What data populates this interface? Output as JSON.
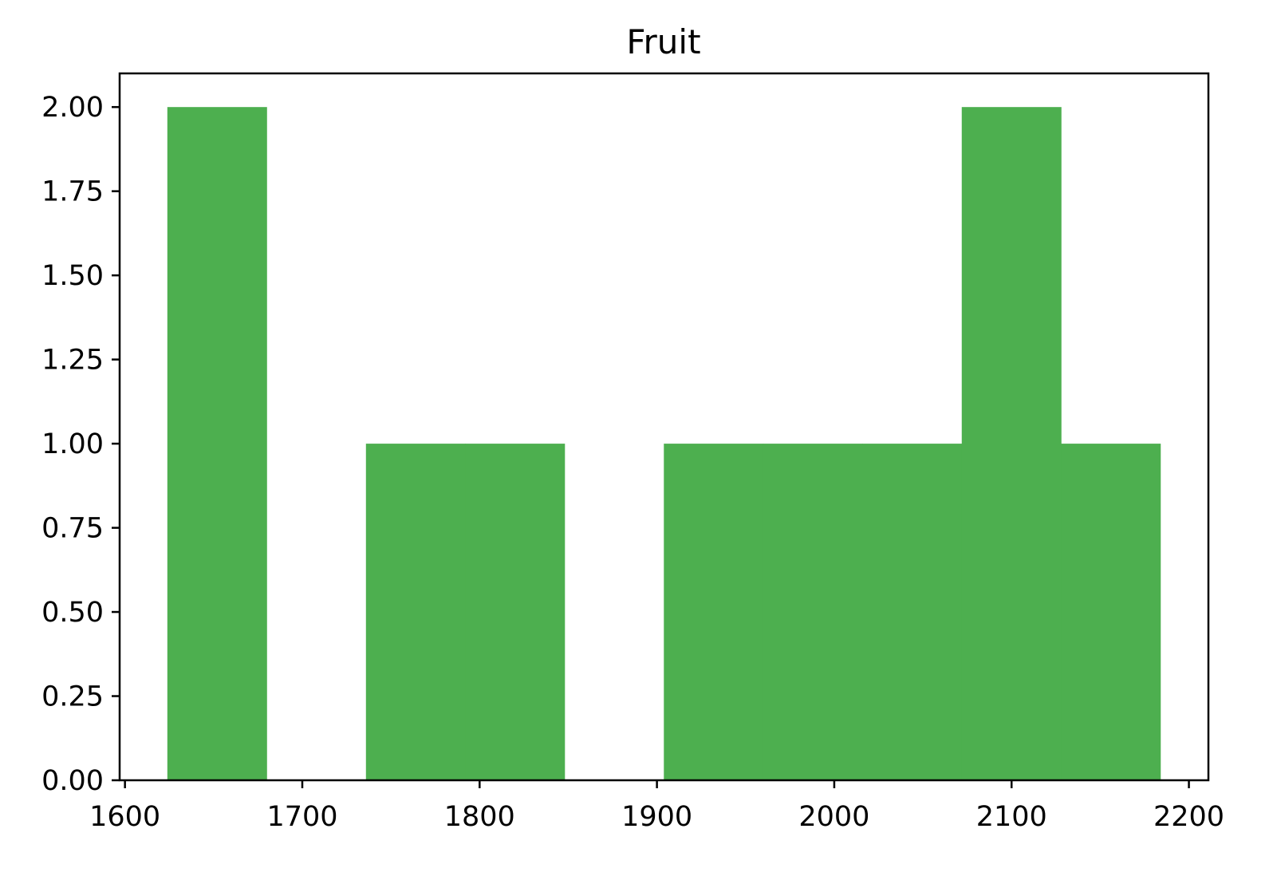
{
  "chart_data": {
    "type": "bar",
    "title": "Fruit",
    "xlabel": "",
    "ylabel": "",
    "bar_color": "#4daf4f",
    "bins": [
      {
        "x0": 1623.9,
        "x1": 1679.9,
        "count": 2
      },
      {
        "x0": 1679.9,
        "x1": 1735.9,
        "count": 0
      },
      {
        "x0": 1735.9,
        "x1": 1791.9,
        "count": 1
      },
      {
        "x0": 1791.9,
        "x1": 1847.9,
        "count": 1
      },
      {
        "x0": 1847.9,
        "x1": 1903.9,
        "count": 0
      },
      {
        "x0": 1903.9,
        "x1": 1959.9,
        "count": 1
      },
      {
        "x0": 1959.9,
        "x1": 2015.9,
        "count": 1
      },
      {
        "x0": 2015.9,
        "x1": 2071.9,
        "count": 1
      },
      {
        "x0": 2071.9,
        "x1": 2127.9,
        "count": 2
      },
      {
        "x0": 2127.9,
        "x1": 2183.9,
        "count": 1
      }
    ],
    "xlim": [
      1597,
      2211
    ],
    "ylim": [
      0,
      2.1
    ],
    "x_ticks": [
      1600,
      1700,
      1800,
      1900,
      2000,
      2100,
      2200
    ],
    "y_ticks": [
      0,
      0.25,
      0.5,
      0.75,
      1.0,
      1.25,
      1.5,
      1.75,
      2.0
    ],
    "x_tick_labels": [
      "1600",
      "1700",
      "1800",
      "1900",
      "2000",
      "2100",
      "2200"
    ],
    "y_tick_labels": [
      "0.00",
      "0.25",
      "0.50",
      "0.75",
      "1.00",
      "1.25",
      "1.50",
      "1.75",
      "2.00"
    ],
    "grid": false,
    "legend": "none"
  }
}
